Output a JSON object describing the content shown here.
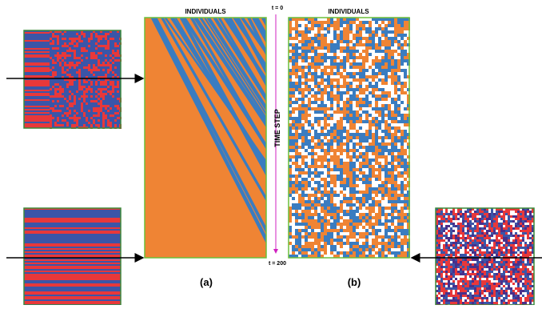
{
  "panel_a": {
    "title": "INDIVIDUALS",
    "label": "(a)"
  },
  "panel_b": {
    "title": "INDIVIDUALS",
    "label": "(b)"
  },
  "time_axis": {
    "start": "t = 0",
    "label": "TIME STEP",
    "end": "t = 200"
  }
}
